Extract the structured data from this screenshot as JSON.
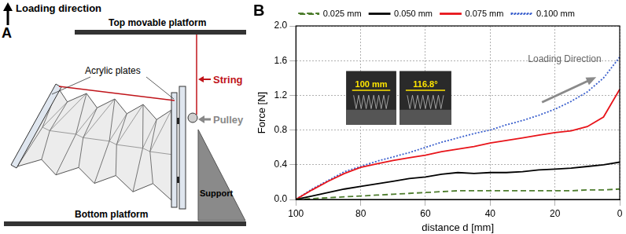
{
  "diagram": {
    "panel_label": "A",
    "loading_direction": "Loading direction",
    "top_platform": "Top movable platform",
    "acrylic_plates": "Acrylic plates",
    "string": "String",
    "pulley": "Pulley",
    "support": "Support",
    "bottom_platform": "Bottom platform"
  },
  "chart_data": {
    "type": "line",
    "panel_label": "B",
    "x_label": "distance d [mm]",
    "y_label": "Force [N]",
    "annotation": "Loading Direction",
    "inset_labels": [
      "100 mm",
      "116.8°"
    ],
    "x": [
      100,
      95,
      90,
      85,
      80,
      75,
      70,
      65,
      60,
      55,
      50,
      45,
      40,
      35,
      30,
      25,
      20,
      15,
      10,
      5,
      0
    ],
    "series": [
      {
        "name": "0.025 mm",
        "color": "#4e7d2e",
        "line_style": "dashed",
        "values": [
          0,
          0.01,
          0.02,
          0.03,
          0.04,
          0.05,
          0.06,
          0.07,
          0.08,
          0.09,
          0.1,
          0.1,
          0.1,
          0.1,
          0.1,
          0.1,
          0.1,
          0.1,
          0.11,
          0.11,
          0.12
        ]
      },
      {
        "name": "0.050 mm",
        "color": "#000000",
        "line_style": "solid",
        "values": [
          0,
          0.04,
          0.08,
          0.12,
          0.15,
          0.18,
          0.21,
          0.24,
          0.26,
          0.29,
          0.31,
          0.3,
          0.31,
          0.31,
          0.32,
          0.34,
          0.35,
          0.36,
          0.38,
          0.4,
          0.43
        ]
      },
      {
        "name": "0.075 mm",
        "color": "#e8141a",
        "line_style": "solid",
        "values": [
          0,
          0.11,
          0.21,
          0.3,
          0.37,
          0.41,
          0.45,
          0.48,
          0.51,
          0.55,
          0.58,
          0.61,
          0.65,
          0.68,
          0.71,
          0.74,
          0.77,
          0.79,
          0.84,
          0.95,
          1.27
        ]
      },
      {
        "name": "0.100 mm",
        "color": "#3a5fcd",
        "line_style": "dotted",
        "values": [
          0,
          0.12,
          0.22,
          0.32,
          0.38,
          0.44,
          0.49,
          0.54,
          0.6,
          0.66,
          0.71,
          0.76,
          0.8,
          0.86,
          0.91,
          0.97,
          1.04,
          1.13,
          1.24,
          1.4,
          1.64
        ]
      }
    ],
    "xlim": [
      100,
      0
    ],
    "xticks": [
      100,
      80,
      60,
      40,
      20,
      0
    ],
    "ylim": [
      0,
      2
    ],
    "yticks": [
      {
        "value": 0,
        "label": "0.0"
      },
      0.4,
      0.8,
      1.2,
      1.6,
      {
        "value": 2,
        "label": "2.0"
      }
    ],
    "grid": true,
    "legend": "top"
  }
}
